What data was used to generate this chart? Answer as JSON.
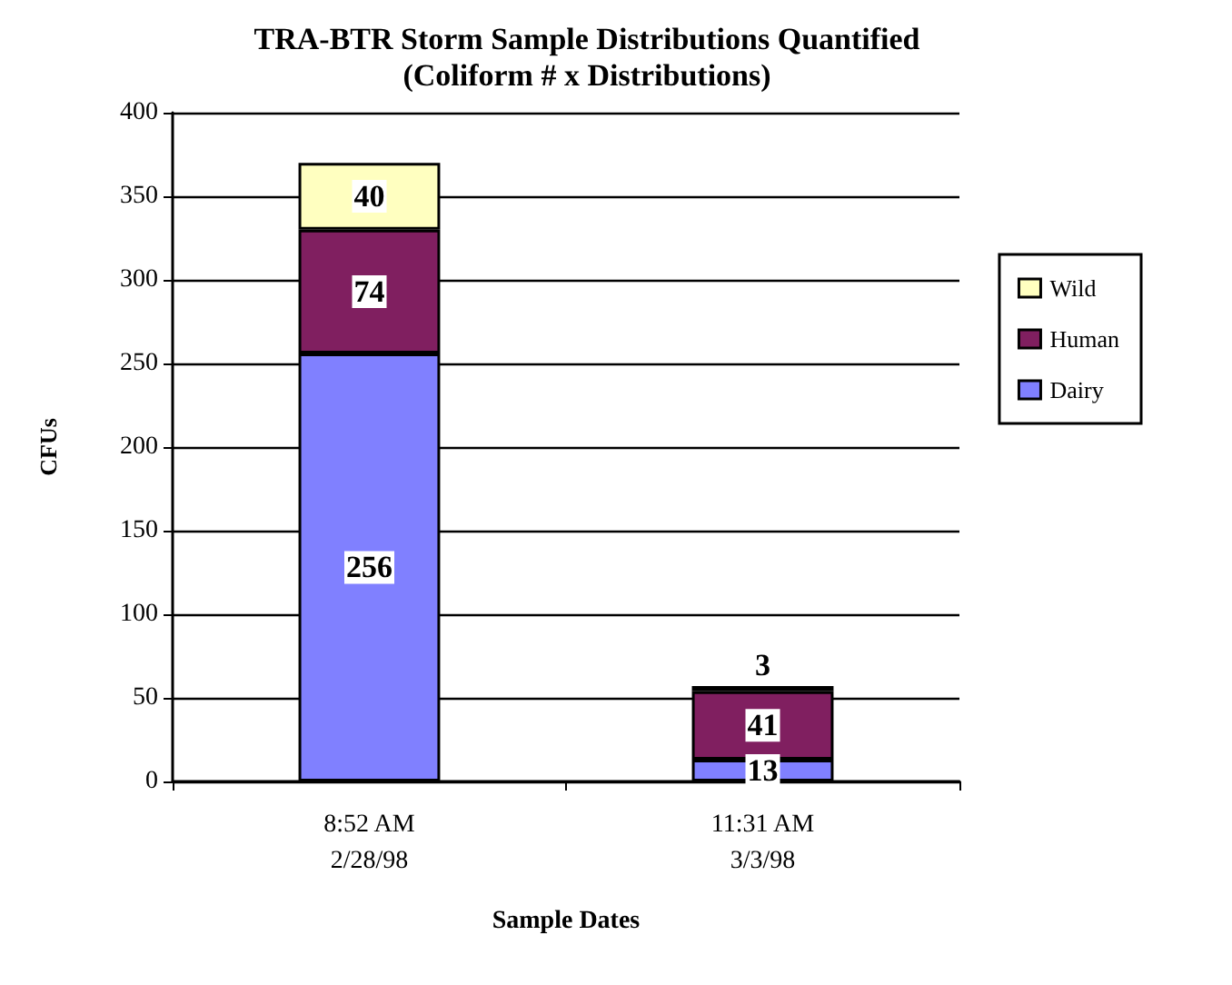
{
  "chart_data": {
    "type": "bar",
    "title": "TRA-BTR Storm Sample Distributions Quantified",
    "subtitle": "(Coliform # x Distributions)",
    "xlabel": "Sample Dates",
    "ylabel": "CFUs",
    "categories": [
      "8:52 AM\n2/28/98",
      "11:31 AM\n3/3/98"
    ],
    "series": [
      {
        "name": "Dairy",
        "color": "#8080ff",
        "values": [
          256,
          13
        ]
      },
      {
        "name": "Human",
        "color": "#801f60",
        "values": [
          74,
          41
        ]
      },
      {
        "name": "Wild",
        "color": "#ffffc0",
        "values": [
          40,
          3
        ]
      }
    ],
    "stacked": true,
    "data_labels": true,
    "ylim": [
      0,
      400
    ],
    "yticks": [
      0,
      50,
      100,
      150,
      200,
      250,
      300,
      350,
      400
    ],
    "grid": "y",
    "legend": "right"
  }
}
